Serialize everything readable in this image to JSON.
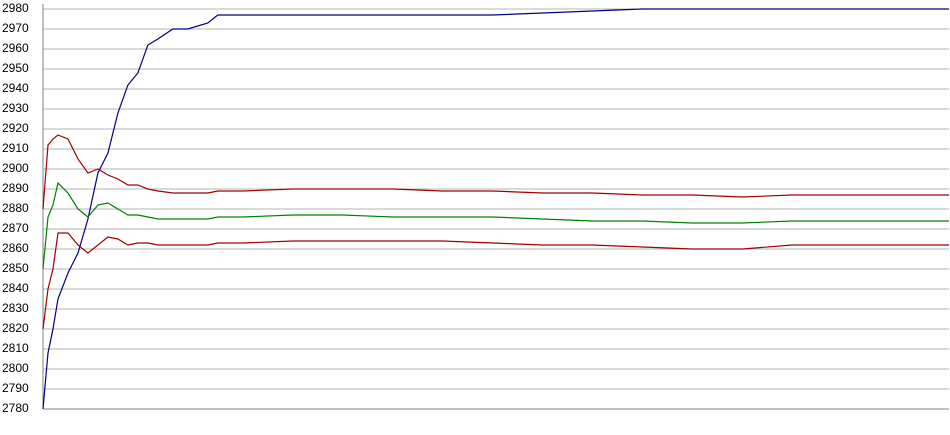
{
  "chart_data": {
    "type": "line",
    "x": [
      0,
      5,
      10,
      15,
      25,
      35,
      45,
      55,
      65,
      75,
      85,
      95,
      105,
      115,
      130,
      145,
      165,
      175,
      200,
      250,
      300,
      350,
      400,
      450,
      500,
      550,
      600,
      650,
      700,
      750,
      800,
      850,
      907
    ],
    "xlim": [
      0,
      907
    ],
    "ylim": [
      2780,
      2980
    ],
    "yticks": [
      2780,
      2790,
      2800,
      2810,
      2820,
      2830,
      2840,
      2850,
      2860,
      2870,
      2880,
      2890,
      2900,
      2910,
      2920,
      2930,
      2940,
      2950,
      2960,
      2970,
      2980
    ],
    "grid": true,
    "series": [
      {
        "color": "#000080",
        "values": [
          2780,
          2808,
          2820,
          2835,
          2848,
          2858,
          2875,
          2898,
          2908,
          2928,
          2942,
          2948,
          2962,
          2965,
          2970,
          2970,
          2973,
          2977,
          2977,
          2977,
          2977,
          2977,
          2977,
          2977,
          2978,
          2979,
          2980,
          2980,
          2980,
          2980,
          2980,
          2980,
          2980
        ]
      },
      {
        "color": "#a00000",
        "values": [
          2880,
          2912,
          2915,
          2917,
          2915,
          2905,
          2898,
          2900,
          2897,
          2895,
          2892,
          2892,
          2890,
          2889,
          2888,
          2888,
          2888,
          2889,
          2889,
          2890,
          2890,
          2890,
          2889,
          2889,
          2888,
          2888,
          2887,
          2887,
          2886,
          2887,
          2887,
          2887,
          2887
        ]
      },
      {
        "color": "#008000",
        "values": [
          2850,
          2876,
          2882,
          2893,
          2888,
          2880,
          2876,
          2882,
          2883,
          2880,
          2877,
          2877,
          2876,
          2875,
          2875,
          2875,
          2875,
          2876,
          2876,
          2877,
          2877,
          2876,
          2876,
          2876,
          2875,
          2874,
          2874,
          2873,
          2873,
          2874,
          2874,
          2874,
          2874
        ]
      },
      {
        "color": "#a00000",
        "values": [
          2820,
          2840,
          2850,
          2868,
          2868,
          2862,
          2858,
          2862,
          2866,
          2865,
          2862,
          2863,
          2863,
          2862,
          2862,
          2862,
          2862,
          2863,
          2863,
          2864,
          2864,
          2864,
          2864,
          2863,
          2862,
          2862,
          2861,
          2860,
          2860,
          2862,
          2862,
          2862,
          2862
        ]
      }
    ]
  }
}
